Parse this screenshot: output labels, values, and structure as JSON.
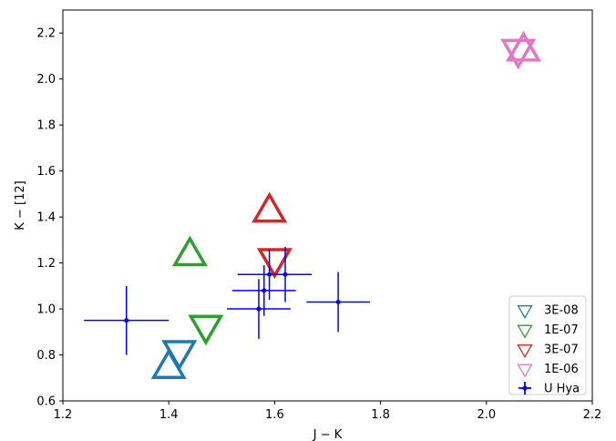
{
  "chart_data": {
    "type": "scatter",
    "xlabel": "J − K",
    "ylabel": "K − [12]",
    "xlim": [
      1.2,
      2.2
    ],
    "ylim": [
      0.6,
      2.3
    ],
    "x_ticks": [
      "1.2",
      "1.4",
      "1.6",
      "1.8",
      "2.0",
      "2.2"
    ],
    "y_ticks": [
      "0.6",
      "0.8",
      "1.0",
      "1.2",
      "1.4",
      "1.6",
      "1.8",
      "2.0",
      "2.2"
    ],
    "legend_position": "lower-right",
    "series": [
      {
        "name": "3E-08",
        "color": "#1f77b4",
        "marker": "triangle",
        "points": [
          {
            "x": 1.42,
            "y": 0.82,
            "dir": "down"
          },
          {
            "x": 1.4,
            "y": 0.74,
            "dir": "up"
          }
        ]
      },
      {
        "name": "1E-07",
        "color": "#2ca02c",
        "marker": "triangle",
        "points": [
          {
            "x": 1.47,
            "y": 0.93,
            "dir": "down"
          },
          {
            "x": 1.44,
            "y": 1.23,
            "dir": "up"
          }
        ]
      },
      {
        "name": "3E-07",
        "color": "#d62728",
        "marker": "triangle",
        "points": [
          {
            "x": 1.6,
            "y": 1.22,
            "dir": "down"
          },
          {
            "x": 1.59,
            "y": 1.42,
            "dir": "up"
          }
        ]
      },
      {
        "name": "1E-06",
        "color": "#e377c2",
        "marker": "triangle",
        "points": [
          {
            "x": 2.06,
            "y": 2.13,
            "dir": "down"
          },
          {
            "x": 2.07,
            "y": 2.12,
            "dir": "up"
          }
        ]
      },
      {
        "name": "U Hya",
        "color": "#0000ff",
        "marker": "errorbar",
        "points": [
          {
            "x": 1.32,
            "y": 0.95,
            "xerr": 0.08,
            "yerr": 0.15
          },
          {
            "x": 1.57,
            "y": 1.0,
            "xerr": 0.06,
            "yerr": 0.13
          },
          {
            "x": 1.58,
            "y": 1.08,
            "xerr": 0.06,
            "yerr": 0.11
          },
          {
            "x": 1.59,
            "y": 1.15,
            "xerr": 0.06,
            "yerr": 0.11
          },
          {
            "x": 1.62,
            "y": 1.15,
            "xerr": 0.05,
            "yerr": 0.12
          },
          {
            "x": 1.72,
            "y": 1.03,
            "xerr": 0.06,
            "yerr": 0.13
          }
        ]
      }
    ]
  }
}
